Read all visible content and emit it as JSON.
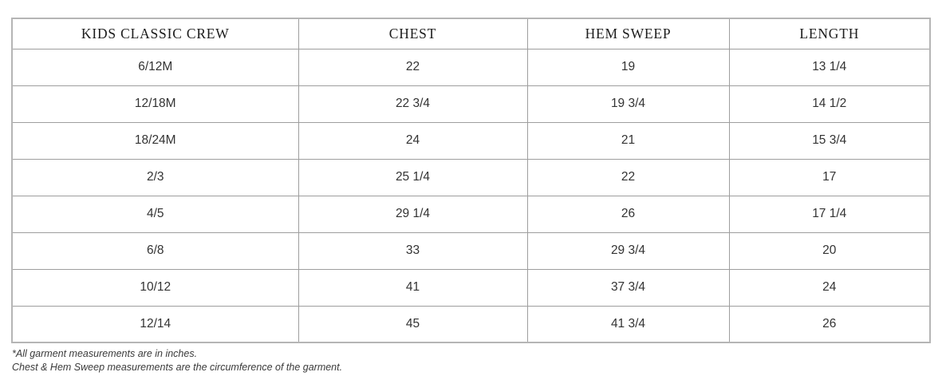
{
  "chart_data": {
    "type": "table",
    "title": "KIDS CLASSIC CREW",
    "columns": [
      "KIDS CLASSIC CREW",
      "CHEST",
      "HEM SWEEP",
      "LENGTH"
    ],
    "rows": [
      [
        "6/12M",
        "22",
        "19",
        "13 1/4"
      ],
      [
        "12/18M",
        "22 3/4",
        "19 3/4",
        "14 1/2"
      ],
      [
        "18/24M",
        "24",
        "21",
        "15 3/4"
      ],
      [
        "2/3",
        "25 1/4",
        "22",
        "17"
      ],
      [
        "4/5",
        "29 1/4",
        "26",
        "17 1/4"
      ],
      [
        "6/8",
        "33",
        "29 3/4",
        "20"
      ],
      [
        "10/12",
        "41",
        "37 3/4",
        "24"
      ],
      [
        "12/14",
        "45",
        "41 3/4",
        "26"
      ]
    ],
    "units": "inches"
  },
  "table": {
    "header": [
      "KIDS CLASSIC CREW",
      "CHEST",
      "HEM SWEEP",
      "LENGTH"
    ],
    "rows": [
      [
        "6/12M",
        "22",
        "19",
        "13 1/4"
      ],
      [
        "12/18M",
        "22 3/4",
        "19 3/4",
        "14 1/2"
      ],
      [
        "18/24M",
        "24",
        "21",
        "15 3/4"
      ],
      [
        "2/3",
        "25 1/4",
        "22",
        "17"
      ],
      [
        "4/5",
        "29 1/4",
        "26",
        "17 1/4"
      ],
      [
        "6/8",
        "33",
        "29 3/4",
        "20"
      ],
      [
        "10/12",
        "41",
        "37 3/4",
        "24"
      ],
      [
        "12/14",
        "45",
        "41 3/4",
        "26"
      ]
    ]
  },
  "footnotes": {
    "line1": "*All garment measurements are in inches.",
    "line2": "Chest & Hem Sweep measurements are the circumference of the garment."
  },
  "colors": {
    "background": "#ffffff",
    "border_outer": "#b5b5b5",
    "border_inner": "#9e9e9e",
    "header_text": "#1c1c1c",
    "cell_text": "#333333",
    "footnote_text": "#3a3a3a"
  }
}
